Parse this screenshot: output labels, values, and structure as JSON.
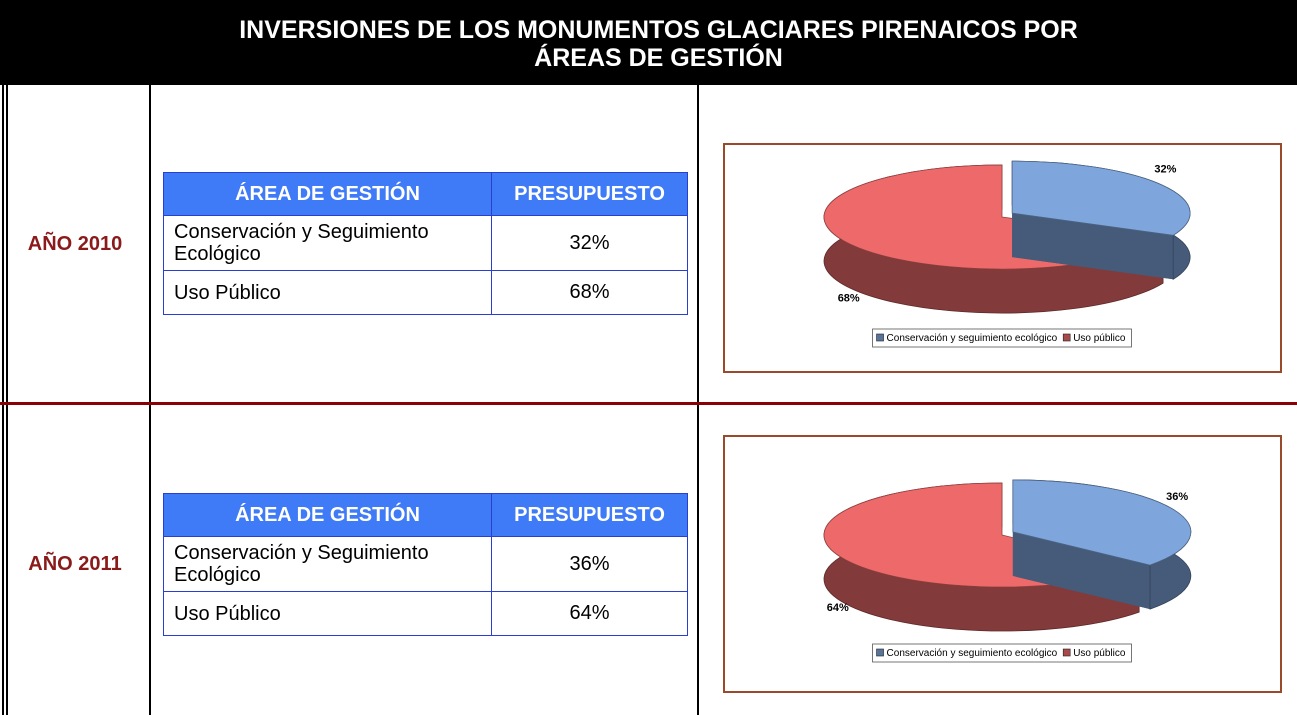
{
  "header": {
    "title_lines": [
      "INVERSIONES DE LOS MONUMENTOS GLACIARES PIRENAICOS POR",
      "ÁREAS DE GESTIÓN"
    ]
  },
  "sections": [
    {
      "label": "AÑO 2010",
      "table": {
        "headers": [
          "ÁREA DE GESTIÓN",
          "PRESUPUESTO"
        ],
        "rows": [
          [
            "Conservación y Seguimiento Ecológico",
            "32%"
          ],
          [
            "Uso Público",
            "68%"
          ]
        ]
      },
      "chart": {
        "type": "pie",
        "categories": [
          "Conservación y seguimiento ecológico",
          "Uso público"
        ],
        "values": [
          32,
          68
        ],
        "value_labels": [
          "32%",
          "68%"
        ],
        "colors": [
          "#7fa6dc",
          "#ee6a6a"
        ]
      }
    },
    {
      "label": "AÑO 2011",
      "table": {
        "headers": [
          "ÁREA DE GESTIÓN",
          "PRESUPUESTO"
        ],
        "rows": [
          [
            "Conservación y Seguimiento Ecológico",
            "36%"
          ],
          [
            "Uso Público",
            "64%"
          ]
        ]
      },
      "chart": {
        "type": "pie",
        "categories": [
          "Conservación y seguimiento ecológico",
          "Uso público"
        ],
        "values": [
          36,
          64
        ],
        "value_labels": [
          "36%",
          "64%"
        ],
        "colors": [
          "#7fa6dc",
          "#ee6a6a"
        ]
      }
    }
  ]
}
